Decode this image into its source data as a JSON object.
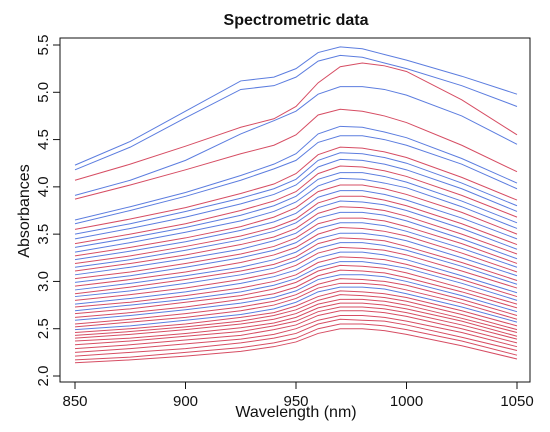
{
  "chart_data": {
    "type": "line",
    "title": "Spectrometric data",
    "xlabel": "Wavelength (nm)",
    "ylabel": "Absorbances",
    "xlim": [
      850,
      1050
    ],
    "ylim": [
      2.0,
      5.5
    ],
    "xticks": [
      850,
      900,
      950,
      1000,
      1050
    ],
    "yticks": [
      2.0,
      2.5,
      3.0,
      3.5,
      4.0,
      4.5,
      5.0,
      5.5
    ],
    "grid": false,
    "legend": "none",
    "colors": {
      "blue": "#4a6fdc",
      "red": "#d23a52"
    },
    "x": [
      850,
      875,
      900,
      925,
      940,
      950,
      960,
      970,
      980,
      990,
      1000,
      1025,
      1050
    ],
    "series": [
      {
        "color": "blue",
        "values": [
          4.23,
          4.48,
          4.8,
          5.12,
          5.16,
          5.25,
          5.42,
          5.48,
          5.46,
          5.4,
          5.34,
          5.17,
          4.98
        ]
      },
      {
        "color": "blue",
        "values": [
          4.18,
          4.42,
          4.73,
          5.03,
          5.07,
          5.16,
          5.33,
          5.39,
          5.37,
          5.31,
          5.25,
          5.07,
          4.85
        ]
      },
      {
        "color": "red",
        "values": [
          4.07,
          4.24,
          4.43,
          4.63,
          4.72,
          4.85,
          5.1,
          5.27,
          5.31,
          5.28,
          5.22,
          4.92,
          4.55
        ]
      },
      {
        "color": "blue",
        "values": [
          3.91,
          4.07,
          4.28,
          4.56,
          4.7,
          4.8,
          4.98,
          5.06,
          5.06,
          5.03,
          4.97,
          4.75,
          4.45
        ]
      },
      {
        "color": "red",
        "values": [
          3.87,
          4.02,
          4.18,
          4.35,
          4.44,
          4.55,
          4.76,
          4.82,
          4.8,
          4.75,
          4.68,
          4.44,
          4.16
        ]
      },
      {
        "color": "blue",
        "values": [
          3.65,
          3.79,
          3.94,
          4.12,
          4.24,
          4.35,
          4.56,
          4.64,
          4.63,
          4.58,
          4.52,
          4.3,
          4.04
        ]
      },
      {
        "color": "blue",
        "values": [
          3.61,
          3.75,
          3.9,
          4.07,
          4.19,
          4.28,
          4.47,
          4.54,
          4.54,
          4.5,
          4.44,
          4.24,
          3.98
        ]
      },
      {
        "color": "red",
        "values": [
          3.55,
          3.66,
          3.78,
          3.93,
          4.03,
          4.14,
          4.34,
          4.42,
          4.41,
          4.37,
          4.31,
          4.1,
          3.86
        ]
      },
      {
        "color": "blue",
        "values": [
          3.5,
          3.61,
          3.74,
          3.88,
          3.98,
          4.08,
          4.28,
          4.36,
          4.35,
          4.31,
          4.25,
          4.04,
          3.8
        ]
      },
      {
        "color": "blue",
        "values": [
          3.45,
          3.56,
          3.68,
          3.82,
          3.92,
          4.02,
          4.21,
          4.29,
          4.28,
          4.24,
          4.18,
          3.98,
          3.74
        ]
      },
      {
        "color": "red",
        "values": [
          3.4,
          3.5,
          3.61,
          3.75,
          3.85,
          3.95,
          4.14,
          4.22,
          4.21,
          4.17,
          4.11,
          3.91,
          3.68
        ]
      },
      {
        "color": "blue",
        "values": [
          3.36,
          3.46,
          3.57,
          3.7,
          3.8,
          3.9,
          4.08,
          4.15,
          4.15,
          4.11,
          4.05,
          3.85,
          3.62
        ]
      },
      {
        "color": "blue",
        "values": [
          3.31,
          3.41,
          3.52,
          3.64,
          3.74,
          3.84,
          4.01,
          4.09,
          4.08,
          4.04,
          3.99,
          3.79,
          3.56
        ]
      },
      {
        "color": "red",
        "values": [
          3.27,
          3.36,
          3.46,
          3.58,
          3.68,
          3.78,
          3.95,
          4.02,
          4.02,
          3.98,
          3.92,
          3.73,
          3.5
        ]
      },
      {
        "color": "blue",
        "values": [
          3.23,
          3.32,
          3.42,
          3.54,
          3.63,
          3.72,
          3.89,
          3.96,
          3.96,
          3.92,
          3.86,
          3.67,
          3.45
        ]
      },
      {
        "color": "red",
        "values": [
          3.19,
          3.27,
          3.37,
          3.48,
          3.57,
          3.66,
          3.83,
          3.9,
          3.9,
          3.86,
          3.8,
          3.61,
          3.39
        ]
      },
      {
        "color": "blue",
        "values": [
          3.15,
          3.23,
          3.33,
          3.44,
          3.53,
          3.62,
          3.78,
          3.85,
          3.84,
          3.81,
          3.75,
          3.56,
          3.34
        ]
      },
      {
        "color": "red",
        "values": [
          3.11,
          3.19,
          3.28,
          3.39,
          3.47,
          3.56,
          3.72,
          3.79,
          3.78,
          3.75,
          3.69,
          3.5,
          3.29
        ]
      },
      {
        "color": "blue",
        "values": [
          3.07,
          3.15,
          3.24,
          3.34,
          3.43,
          3.51,
          3.67,
          3.73,
          3.73,
          3.7,
          3.64,
          3.45,
          3.24
        ]
      },
      {
        "color": "red",
        "values": [
          3.03,
          3.1,
          3.19,
          3.29,
          3.37,
          3.46,
          3.61,
          3.67,
          3.67,
          3.64,
          3.58,
          3.4,
          3.19
        ]
      },
      {
        "color": "blue",
        "values": [
          2.99,
          3.06,
          3.15,
          3.25,
          3.33,
          3.41,
          3.56,
          3.62,
          3.62,
          3.59,
          3.53,
          3.35,
          3.15
        ]
      },
      {
        "color": "red",
        "values": [
          2.95,
          3.02,
          3.1,
          3.2,
          3.28,
          3.36,
          3.5,
          3.57,
          3.56,
          3.53,
          3.48,
          3.3,
          3.1
        ]
      },
      {
        "color": "blue",
        "values": [
          2.91,
          2.98,
          3.06,
          3.15,
          3.23,
          3.31,
          3.45,
          3.51,
          3.51,
          3.48,
          3.43,
          3.25,
          3.06
        ]
      },
      {
        "color": "red",
        "values": [
          2.87,
          2.94,
          3.02,
          3.11,
          3.18,
          3.26,
          3.4,
          3.46,
          3.45,
          3.43,
          3.37,
          3.2,
          3.01
        ]
      },
      {
        "color": "blue",
        "values": [
          2.84,
          2.9,
          2.98,
          3.07,
          3.14,
          3.22,
          3.35,
          3.41,
          3.41,
          3.38,
          3.33,
          3.16,
          2.97
        ]
      },
      {
        "color": "red",
        "values": [
          2.8,
          2.86,
          2.93,
          3.02,
          3.09,
          3.17,
          3.3,
          3.36,
          3.35,
          3.33,
          3.28,
          3.11,
          2.93
        ]
      },
      {
        "color": "blue",
        "values": [
          2.76,
          2.82,
          2.89,
          2.98,
          3.05,
          3.12,
          3.25,
          3.31,
          3.31,
          3.28,
          3.23,
          3.06,
          2.88
        ]
      },
      {
        "color": "red",
        "values": [
          2.73,
          2.78,
          2.85,
          2.93,
          3.0,
          3.07,
          3.2,
          3.26,
          3.25,
          3.23,
          3.18,
          3.02,
          2.84
        ]
      },
      {
        "color": "blue",
        "values": [
          2.69,
          2.75,
          2.81,
          2.89,
          2.96,
          3.03,
          3.15,
          3.21,
          3.21,
          3.18,
          3.14,
          2.98,
          2.8
        ]
      },
      {
        "color": "red",
        "values": [
          2.66,
          2.71,
          2.78,
          2.85,
          2.92,
          2.99,
          3.11,
          3.17,
          3.16,
          3.14,
          3.09,
          2.93,
          2.76
        ]
      },
      {
        "color": "red",
        "values": [
          2.62,
          2.67,
          2.73,
          2.81,
          2.87,
          2.94,
          3.06,
          3.12,
          3.11,
          3.09,
          3.04,
          2.89,
          2.72
        ]
      },
      {
        "color": "blue",
        "values": [
          2.59,
          2.64,
          2.7,
          2.77,
          2.83,
          2.9,
          3.02,
          3.07,
          3.07,
          3.05,
          3.0,
          2.85,
          2.68
        ]
      },
      {
        "color": "red",
        "values": [
          2.55,
          2.6,
          2.66,
          2.73,
          2.79,
          2.86,
          2.97,
          3.03,
          3.02,
          3.0,
          2.96,
          2.81,
          2.64
        ]
      },
      {
        "color": "red",
        "values": [
          2.52,
          2.57,
          2.62,
          2.69,
          2.75,
          2.82,
          2.93,
          2.98,
          2.98,
          2.96,
          2.91,
          2.77,
          2.6
        ]
      },
      {
        "color": "blue",
        "values": [
          2.49,
          2.53,
          2.59,
          2.65,
          2.71,
          2.78,
          2.89,
          2.94,
          2.94,
          2.92,
          2.87,
          2.73,
          2.57
        ]
      },
      {
        "color": "red",
        "values": [
          2.46,
          2.5,
          2.55,
          2.62,
          2.67,
          2.74,
          2.84,
          2.9,
          2.89,
          2.87,
          2.83,
          2.69,
          2.53
        ]
      },
      {
        "color": "red",
        "values": [
          2.43,
          2.47,
          2.52,
          2.58,
          2.64,
          2.7,
          2.8,
          2.86,
          2.85,
          2.83,
          2.79,
          2.65,
          2.49
        ]
      },
      {
        "color": "red",
        "values": [
          2.4,
          2.44,
          2.49,
          2.55,
          2.6,
          2.66,
          2.76,
          2.81,
          2.81,
          2.79,
          2.75,
          2.61,
          2.46
        ]
      },
      {
        "color": "red",
        "values": [
          2.37,
          2.4,
          2.45,
          2.51,
          2.56,
          2.62,
          2.72,
          2.77,
          2.77,
          2.75,
          2.71,
          2.58,
          2.42
        ]
      },
      {
        "color": "red",
        "values": [
          2.33,
          2.37,
          2.42,
          2.47,
          2.53,
          2.58,
          2.68,
          2.73,
          2.73,
          2.71,
          2.67,
          2.54,
          2.39
        ]
      },
      {
        "color": "red",
        "values": [
          2.29,
          2.33,
          2.38,
          2.43,
          2.49,
          2.54,
          2.64,
          2.69,
          2.69,
          2.67,
          2.63,
          2.5,
          2.35
        ]
      },
      {
        "color": "red",
        "values": [
          2.25,
          2.29,
          2.34,
          2.39,
          2.44,
          2.5,
          2.59,
          2.64,
          2.64,
          2.62,
          2.58,
          2.46,
          2.31
        ]
      },
      {
        "color": "red",
        "values": [
          2.21,
          2.25,
          2.29,
          2.35,
          2.4,
          2.45,
          2.55,
          2.6,
          2.59,
          2.58,
          2.54,
          2.41,
          2.27
        ]
      },
      {
        "color": "red",
        "values": [
          2.17,
          2.2,
          2.25,
          2.3,
          2.35,
          2.4,
          2.5,
          2.55,
          2.55,
          2.53,
          2.49,
          2.37,
          2.22
        ]
      },
      {
        "color": "red",
        "values": [
          2.14,
          2.17,
          2.21,
          2.26,
          2.31,
          2.36,
          2.45,
          2.5,
          2.5,
          2.48,
          2.44,
          2.32,
          2.18
        ]
      }
    ]
  }
}
